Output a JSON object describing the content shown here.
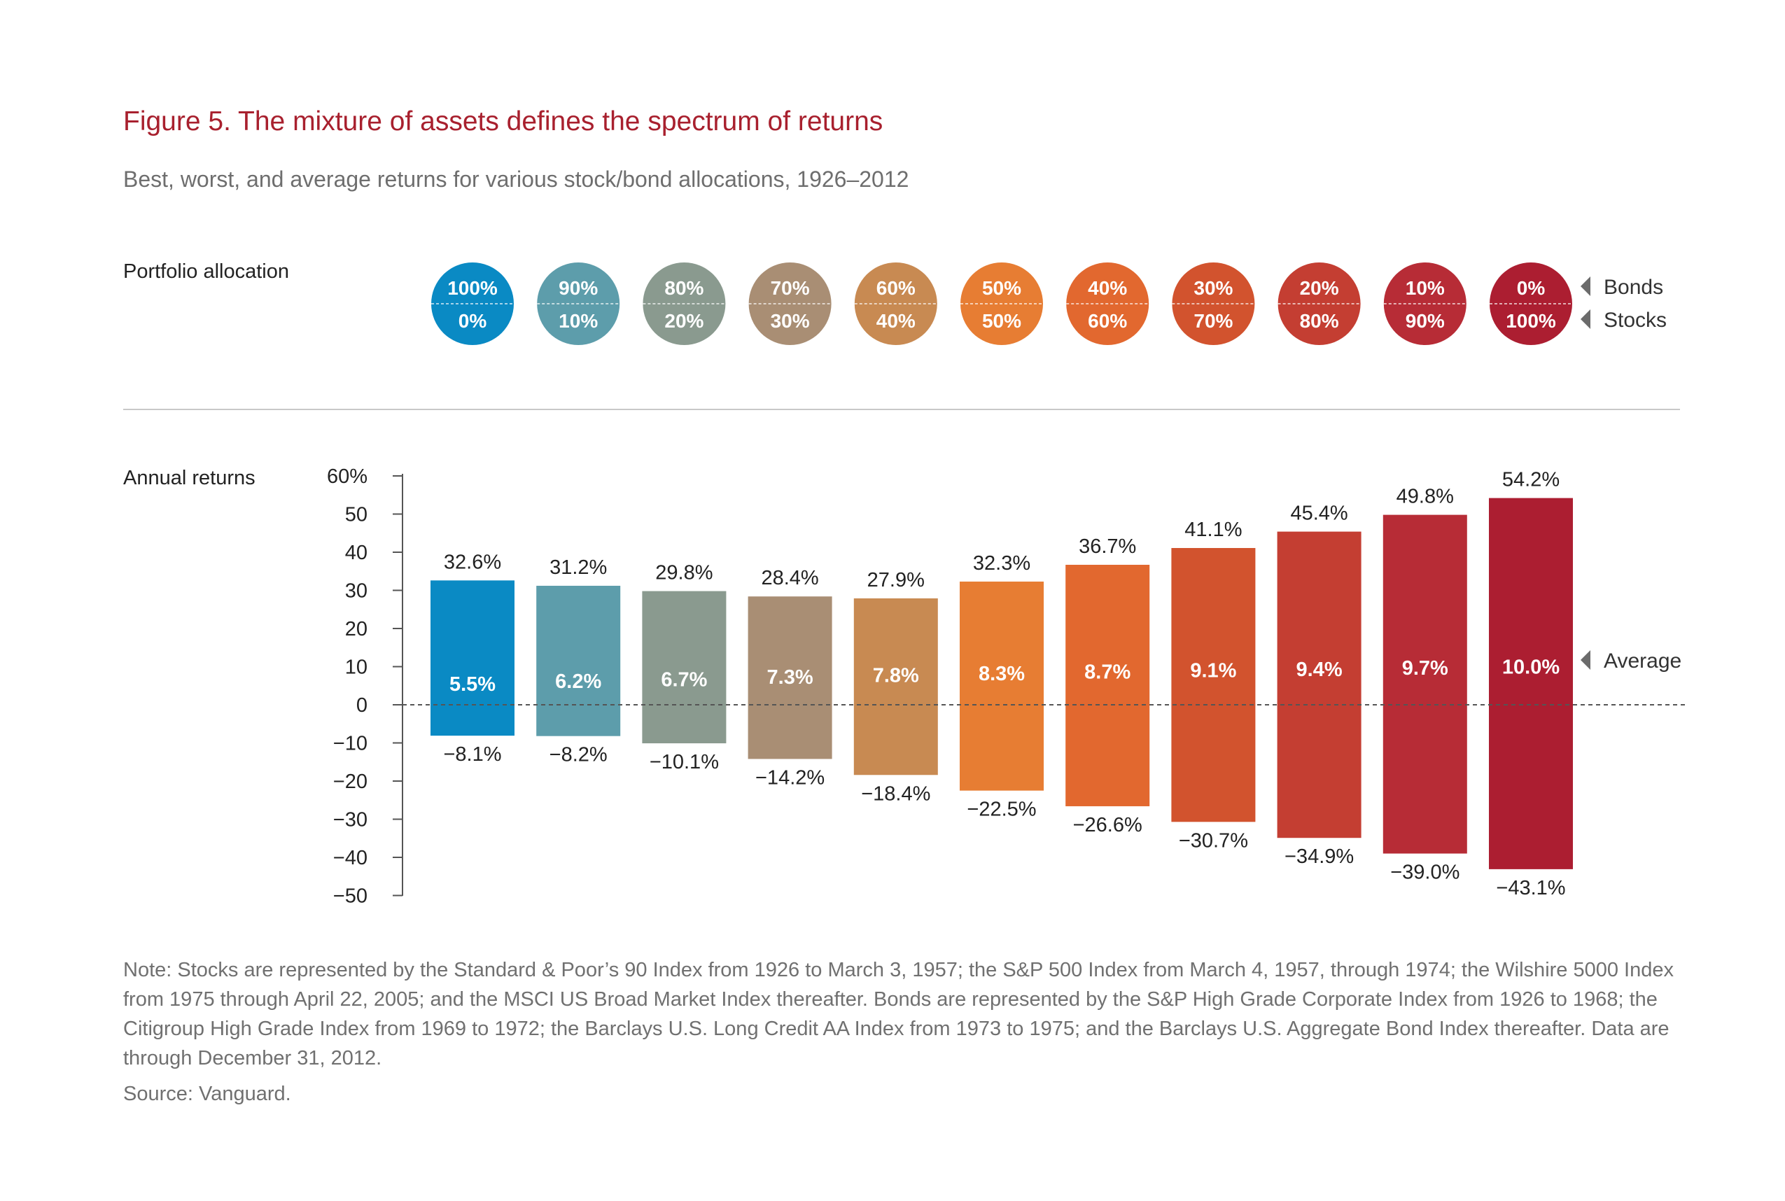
{
  "figure": {
    "title": "Figure 5. The mixture of assets defines the spectrum of returns",
    "subtitle": "Best, worst, and average returns for various stock/bond allocations, 1926–2012"
  },
  "allocation": {
    "label": "Portfolio allocation",
    "bonds_label": "Bonds",
    "stocks_label": "Stocks"
  },
  "chart_data": {
    "type": "bar",
    "title": "Annual returns",
    "ylabel": "Annual returns",
    "ylim": [
      -50,
      60
    ],
    "y_ticks": [
      "60%",
      "50",
      "40",
      "30",
      "20",
      "10",
      "0",
      "−10",
      "−20",
      "−30",
      "−40",
      "−50"
    ],
    "y_tick_values": [
      60,
      50,
      40,
      30,
      20,
      10,
      0,
      -10,
      -20,
      -30,
      -40,
      -50
    ],
    "average_label": "Average",
    "categories": [
      {
        "bonds": "100%",
        "stocks": "0%"
      },
      {
        "bonds": "90%",
        "stocks": "10%"
      },
      {
        "bonds": "80%",
        "stocks": "20%"
      },
      {
        "bonds": "70%",
        "stocks": "30%"
      },
      {
        "bonds": "60%",
        "stocks": "40%"
      },
      {
        "bonds": "50%",
        "stocks": "50%"
      },
      {
        "bonds": "40%",
        "stocks": "60%"
      },
      {
        "bonds": "30%",
        "stocks": "70%"
      },
      {
        "bonds": "20%",
        "stocks": "80%"
      },
      {
        "bonds": "10%",
        "stocks": "90%"
      },
      {
        "bonds": "0%",
        "stocks": "100%"
      }
    ],
    "series": [
      {
        "name": "Best",
        "values": [
          32.6,
          31.2,
          29.8,
          28.4,
          27.9,
          32.3,
          36.7,
          41.1,
          45.4,
          49.8,
          54.2
        ],
        "labels": [
          "32.6%",
          "31.2%",
          "29.8%",
          "28.4%",
          "27.9%",
          "32.3%",
          "36.7%",
          "41.1%",
          "45.4%",
          "49.8%",
          "54.2%"
        ]
      },
      {
        "name": "Worst",
        "values": [
          -8.1,
          -8.2,
          -10.1,
          -14.2,
          -18.4,
          -22.5,
          -26.6,
          -30.7,
          -34.9,
          -39.0,
          -43.1
        ],
        "labels": [
          "−8.1%",
          "−8.2%",
          "−10.1%",
          "−14.2%",
          "−18.4%",
          "−22.5%",
          "−26.6%",
          "−30.7%",
          "−34.9%",
          "−39.0%",
          "−43.1%"
        ]
      },
      {
        "name": "Average",
        "values": [
          5.5,
          6.2,
          6.7,
          7.3,
          7.8,
          8.3,
          8.7,
          9.1,
          9.4,
          9.7,
          10.0
        ],
        "labels": [
          "5.5%",
          "6.2%",
          "6.7%",
          "7.3%",
          "7.8%",
          "8.3%",
          "8.7%",
          "9.1%",
          "9.4%",
          "9.7%",
          "10.0%"
        ]
      }
    ],
    "colors": [
      "#0a8ac4",
      "#5d9dab",
      "#8a9a8f",
      "#a98e74",
      "#c88a52",
      "#e77d33",
      "#e2682f",
      "#d2532e",
      "#c43e32",
      "#b72c36",
      "#ac1e31"
    ],
    "grid": false,
    "zero_line": "dashed"
  },
  "note": "Note: Stocks are represented by the Standard & Poor’s 90 Index from 1926 to March 3, 1957; the S&P 500 Index from March 4, 1957, through 1974; the Wilshire 5000 Index from 1975 through April 22, 2005; and the MSCI US Broad Market Index thereafter. Bonds are represented by the S&P High Grade Corporate Index from 1926 to 1968; the Citigroup High Grade Index from 1969 to 1972; the Barclays U.S. Long Credit AA Index from 1973 to 1975; and the Barclays U.S. Aggregate Bond Index thereafter. Data are through December 31, 2012.",
  "source": "Source: Vanguard."
}
